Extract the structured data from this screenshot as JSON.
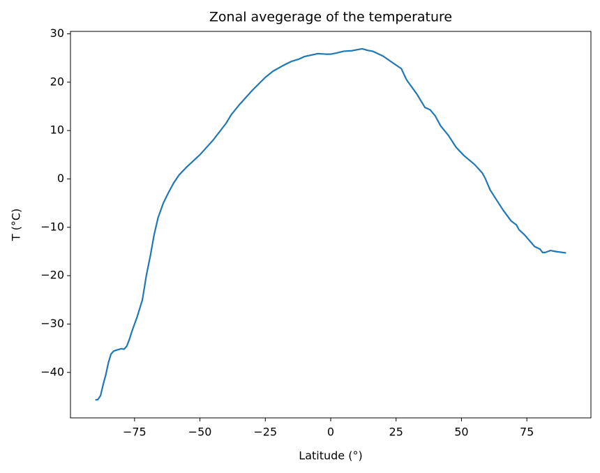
{
  "chart_data": {
    "type": "line",
    "title": "Zonal avegerage of the temperature",
    "x_label": "Latitude (°)",
    "y_label": "T (°C)",
    "x": [
      -90,
      -89,
      -88,
      -87,
      -86,
      -85,
      -84,
      -83,
      -82,
      -80,
      -79,
      -78,
      -77,
      -76,
      -74,
      -72,
      -70.5,
      -69,
      -67.5,
      -66,
      -64,
      -62,
      -60,
      -58,
      -55,
      -50,
      -45,
      -40,
      -38,
      -35,
      -30,
      -25,
      -22,
      -18,
      -15,
      -12,
      -10,
      -5,
      -2,
      0,
      2,
      5,
      8,
      12,
      14,
      16,
      20,
      24,
      27,
      29,
      33,
      36,
      38,
      40,
      42,
      45,
      48,
      51,
      55,
      58,
      59,
      61,
      63,
      66,
      69,
      71,
      72,
      74,
      78,
      80,
      81,
      82,
      84,
      86,
      90
    ],
    "series": [
      {
        "color": "#1f77b4",
        "values": [
          -45.7,
          -45.6,
          -44.8,
          -42.5,
          -40.5,
          -38,
          -36.2,
          -35.6,
          -35.4,
          -35.1,
          -35.2,
          -34.6,
          -33.2,
          -31.5,
          -28.5,
          -25,
          -20,
          -16,
          -11.5,
          -8,
          -5,
          -2.8,
          -0.8,
          0.8,
          2.5,
          5.0,
          8.0,
          11.5,
          13.3,
          15.3,
          18.3,
          21,
          22.3,
          23.5,
          24.3,
          24.8,
          25.3,
          25.9,
          25.8,
          25.8,
          26.0,
          26.4,
          26.5,
          26.9,
          26.6,
          26.4,
          25.4,
          23.9,
          22.8,
          20.5,
          17.5,
          14.8,
          14.3,
          13.0,
          11.0,
          9.0,
          6.5,
          4.8,
          3.0,
          1.2,
          0.2,
          -2.3,
          -4.0,
          -6.5,
          -8.7,
          -9.5,
          -10.5,
          -11.5,
          -14.0,
          -14.5,
          -15.2,
          -15.2,
          -14.8,
          -15.0,
          -15.3
        ]
      }
    ],
    "xlim": [
      -99.5,
      99.5
    ],
    "ylim": [
      -49.4,
      30.5
    ],
    "xticks": [
      {
        "value": -75,
        "label": "−75"
      },
      {
        "value": -50,
        "label": "−50"
      },
      {
        "value": -25,
        "label": "−25"
      },
      0,
      25,
      50,
      75
    ],
    "yticks": [
      {
        "value": -40,
        "label": "−40"
      },
      {
        "value": -30,
        "label": "−30"
      },
      {
        "value": -20,
        "label": "−20"
      },
      {
        "value": -10,
        "label": "−10"
      },
      0,
      10,
      20,
      30
    ]
  }
}
